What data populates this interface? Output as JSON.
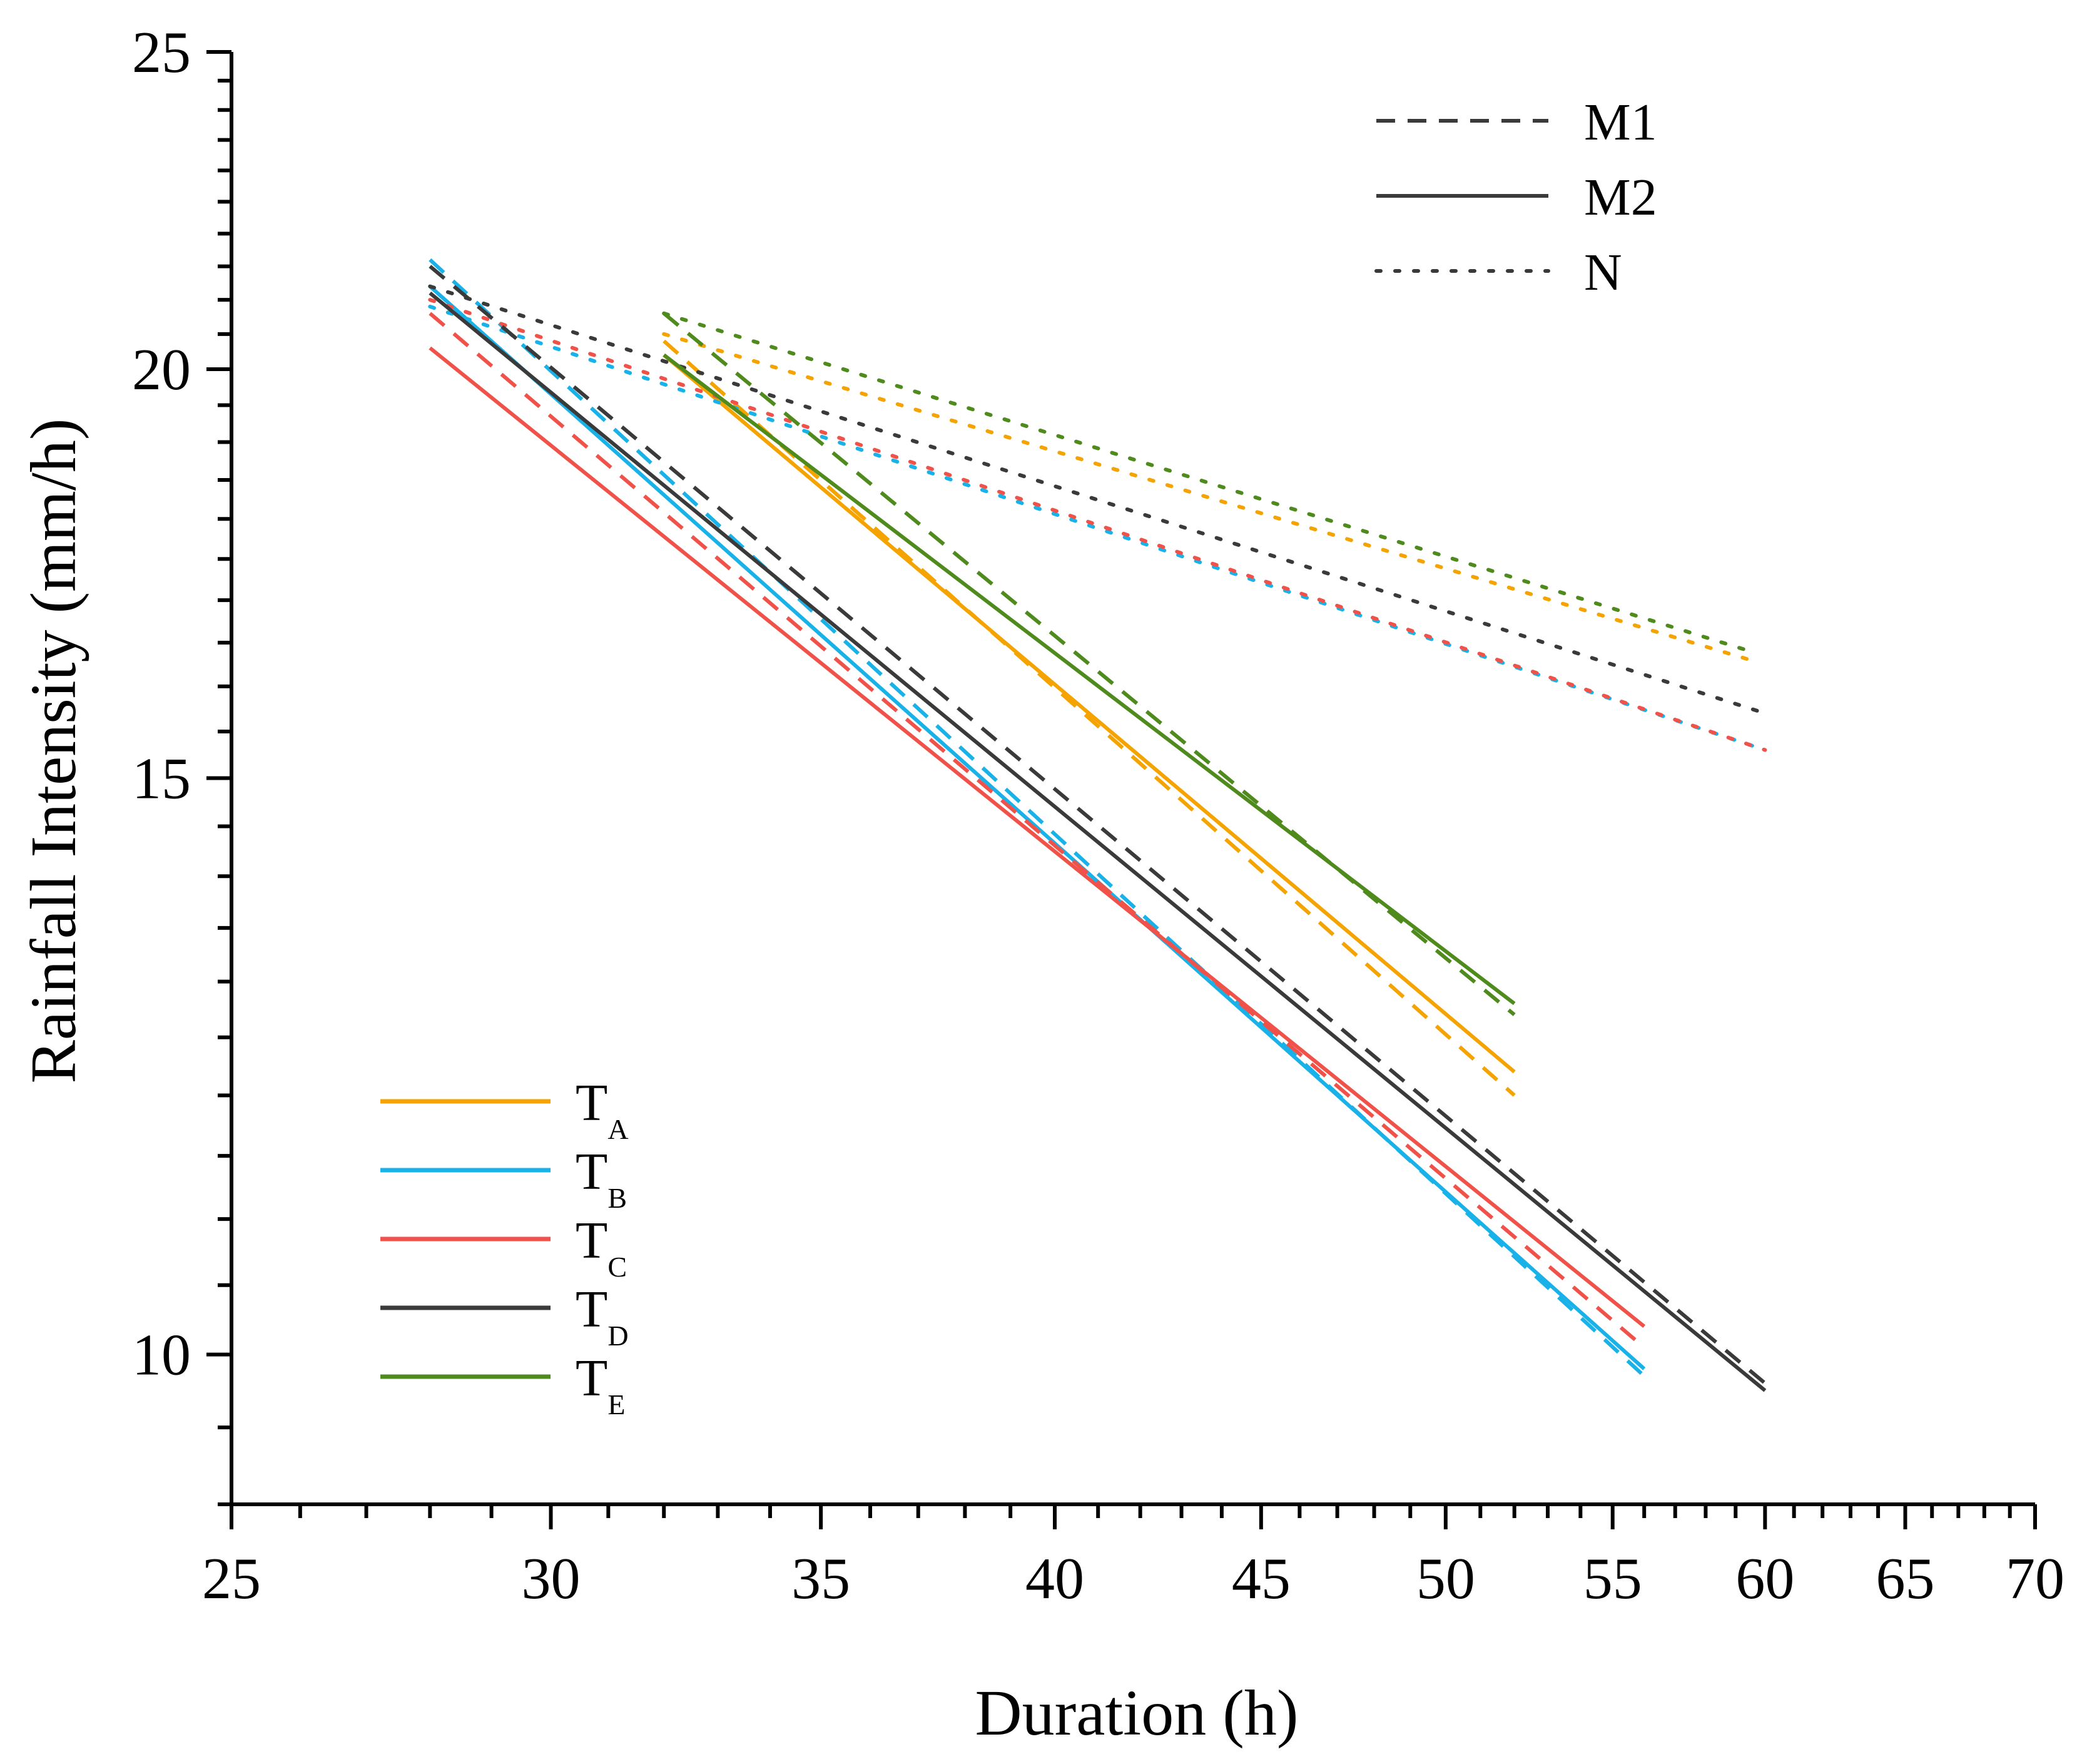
{
  "chart_data": {
    "type": "line",
    "title": "",
    "xlabel": "Duration (h)",
    "ylabel": "Rainfall Intensity (mm/h)",
    "x_scale": "log",
    "y_scale": "log",
    "xlim": [
      25,
      70
    ],
    "ylim": [
      9,
      25
    ],
    "x_ticks": [
      25,
      30,
      35,
      40,
      45,
      50,
      55,
      60,
      65,
      70
    ],
    "y_ticks": [
      10,
      15,
      20,
      25
    ],
    "style_legend": [
      {
        "label": "M1",
        "dash": "dashed"
      },
      {
        "label": "M2",
        "dash": "solid"
      },
      {
        "label": "N",
        "dash": "dotted"
      }
    ],
    "group_legend": [
      {
        "base": "T",
        "sub": "A",
        "color": "#F5A300"
      },
      {
        "base": "T",
        "sub": "B",
        "color": "#18B1E8"
      },
      {
        "base": "T",
        "sub": "C",
        "color": "#F0524A"
      },
      {
        "base": "T",
        "sub": "D",
        "color": "#3A3A3A"
      },
      {
        "base": "T",
        "sub": "E",
        "color": "#4E8A1C"
      }
    ],
    "series": [
      {
        "name": "TA-M1",
        "group": "TA",
        "style": "dashed",
        "x": [
          32,
          52
        ],
        "y": [
          20.4,
          12.0
        ]
      },
      {
        "name": "TA-M2",
        "group": "TA",
        "style": "solid",
        "x": [
          32,
          52
        ],
        "y": [
          20.2,
          12.2
        ]
      },
      {
        "name": "TA-N",
        "group": "TA",
        "style": "dotted",
        "x": [
          32,
          59.5
        ],
        "y": [
          20.5,
          16.3
        ]
      },
      {
        "name": "TB-M1",
        "group": "TB",
        "style": "dashed",
        "x": [
          28,
          56
        ],
        "y": [
          21.6,
          9.85
        ]
      },
      {
        "name": "TB-M2",
        "group": "TB",
        "style": "solid",
        "x": [
          28,
          56
        ],
        "y": [
          21.2,
          9.9
        ]
      },
      {
        "name": "TB-N",
        "group": "TB",
        "style": "dotted",
        "x": [
          28,
          60
        ],
        "y": [
          20.9,
          15.3
        ]
      },
      {
        "name": "TC-M1",
        "group": "TC",
        "style": "dashed",
        "x": [
          28,
          56
        ],
        "y": [
          20.8,
          10.05
        ]
      },
      {
        "name": "TC-M2",
        "group": "TC",
        "style": "solid",
        "x": [
          28,
          56
        ],
        "y": [
          20.3,
          10.2
        ]
      },
      {
        "name": "TC-N",
        "group": "TC",
        "style": "dotted",
        "x": [
          28,
          60
        ],
        "y": [
          21.0,
          15.3
        ]
      },
      {
        "name": "TD-M1",
        "group": "TD",
        "style": "dashed",
        "x": [
          28,
          60
        ],
        "y": [
          21.5,
          9.8
        ]
      },
      {
        "name": "TD-M2",
        "group": "TD",
        "style": "solid",
        "x": [
          28,
          60
        ],
        "y": [
          21.1,
          9.75
        ]
      },
      {
        "name": "TD-N",
        "group": "TD",
        "style": "dotted",
        "x": [
          28,
          60
        ],
        "y": [
          21.2,
          15.7
        ]
      },
      {
        "name": "TE-M1",
        "group": "TE",
        "style": "dashed",
        "x": [
          32,
          52
        ],
        "y": [
          20.8,
          12.7
        ]
      },
      {
        "name": "TE-M2",
        "group": "TE",
        "style": "solid",
        "x": [
          32,
          52
        ],
        "y": [
          20.2,
          12.8
        ]
      },
      {
        "name": "TE-N",
        "group": "TE",
        "style": "dotted",
        "x": [
          32,
          59.5
        ],
        "y": [
          20.8,
          16.4
        ]
      }
    ]
  }
}
